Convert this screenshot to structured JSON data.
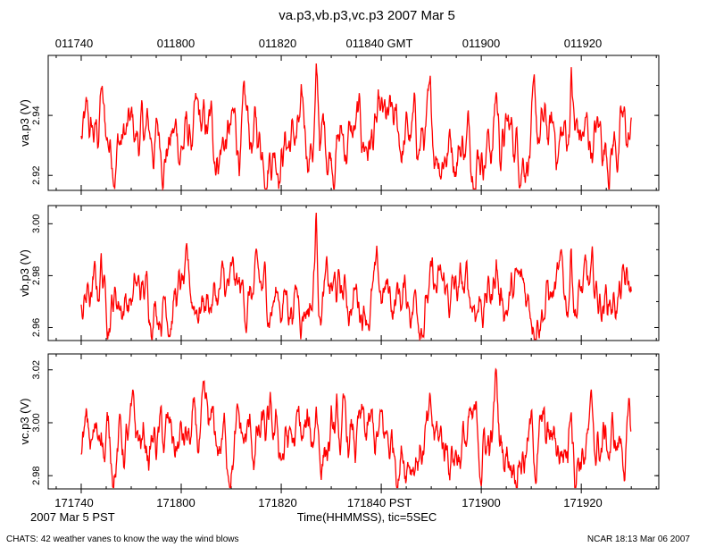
{
  "chart_data": {
    "type": "line",
    "title": "va.p3,vb.p3,vc.p3 2007 Mar 5",
    "top_axis": {
      "tick_labels": [
        "011740",
        "011800",
        "011820",
        "011840 GMT",
        "011900",
        "011920"
      ]
    },
    "bottom_axis": {
      "tick_labels": [
        "171740",
        "171800",
        "171820",
        "171840 PST",
        "171900",
        "171920"
      ],
      "date_label": "2007 Mar  5 PST",
      "xlabel": "Time(HHMMSS), tic=5SEC"
    },
    "x_range": [
      "17:17:40",
      "17:19:30"
    ],
    "series_color": "#ff0000",
    "panels": [
      {
        "ylabel": "va.p3 (V)",
        "ylim": [
          2.915,
          2.96
        ],
        "y_ticks": [
          2.92,
          2.94
        ],
        "y_tick_labels": [
          "2.92",
          "2.94"
        ],
        "mean": 2.932,
        "amplitude": 0.0085,
        "spikes": [
          {
            "t": "17:19:03",
            "value": 2.952
          },
          {
            "t": "17:19:18",
            "value": 2.958
          },
          {
            "t": "17:18:27",
            "value": 2.95
          },
          {
            "t": "17:17:44",
            "value": 2.952
          }
        ]
      },
      {
        "ylabel": "vb.p3 (V)",
        "ylim": [
          2.955,
          3.007
        ],
        "y_ticks": [
          2.96,
          2.98,
          3.0
        ],
        "y_tick_labels": [
          "2.96",
          "2.98",
          "3.00"
        ],
        "mean": 2.972,
        "amplitude": 0.0085,
        "spikes": [
          {
            "t": "17:18:27",
            "value": 3.006
          },
          {
            "t": "17:19:18",
            "value": 2.998
          },
          {
            "t": "17:19:03",
            "value": 2.993
          },
          {
            "t": "17:17:44",
            "value": 2.992
          }
        ]
      },
      {
        "ylabel": "vc.p3 (V)",
        "ylim": [
          2.975,
          3.026
        ],
        "y_ticks": [
          2.98,
          3.0,
          3.02
        ],
        "y_tick_labels": [
          "2.98",
          "3.00",
          "3.02"
        ],
        "mean": 2.992,
        "amplitude": 0.0095,
        "spikes": [
          {
            "t": "17:19:18",
            "value": 3.022
          },
          {
            "t": "17:19:03",
            "value": 3.019
          },
          {
            "t": "17:18:27",
            "value": 3.016
          },
          {
            "t": "17:17:44",
            "value": 3.012
          }
        ]
      }
    ]
  },
  "footer": {
    "left": "CHATS: 42 weather vanes to know the way the wind blows",
    "right": "NCAR 18:13 Mar 06 2007"
  }
}
